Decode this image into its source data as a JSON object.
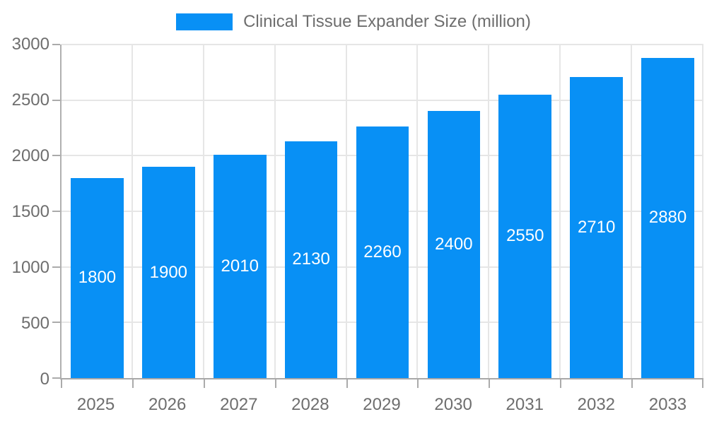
{
  "chart_data": {
    "type": "bar",
    "legend_label": "Clinical Tissue Expander Size (million)",
    "legend_position": "top",
    "categories": [
      "2025",
      "2026",
      "2027",
      "2028",
      "2029",
      "2030",
      "2031",
      "2032",
      "2033"
    ],
    "series": [
      {
        "name": "Clinical Tissue Expander Size (million)",
        "values": [
          1800,
          1900,
          2010,
          2130,
          2260,
          2400,
          2550,
          2710,
          2880
        ]
      }
    ],
    "yticks": [
      0,
      500,
      1000,
      1500,
      2000,
      2500,
      3000
    ],
    "ylim": [
      0,
      3000
    ],
    "grid": true,
    "bar_width_ratio": 0.74,
    "colors": {
      "bar": "#0890f5",
      "grid": "#e6e6e6",
      "axis": "#ababab",
      "text": "#6e6e6e",
      "bar_label": "#ffffff",
      "background": "#ffffff"
    }
  }
}
